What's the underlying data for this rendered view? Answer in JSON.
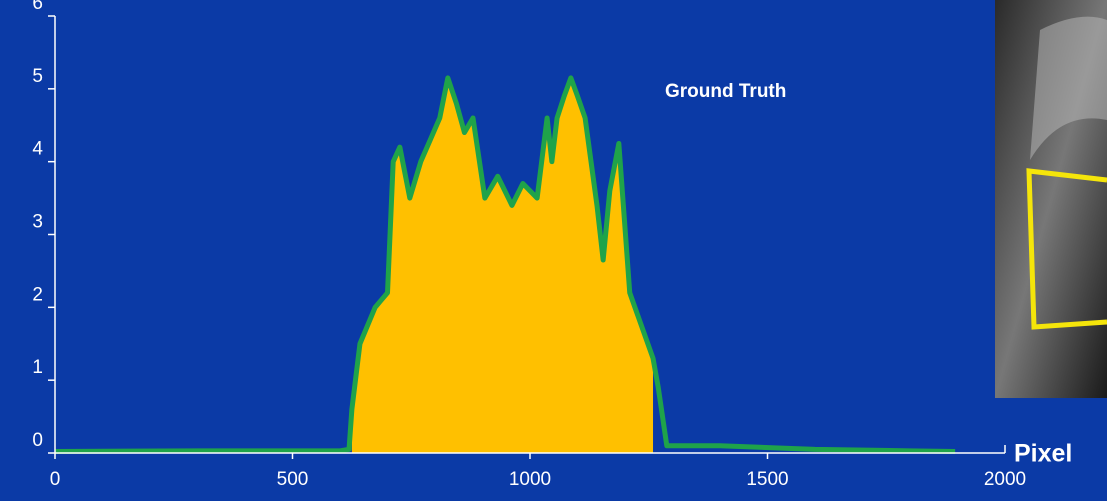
{
  "chart_data": {
    "type": "line",
    "annotation": "Ground Truth",
    "x_label": "Pixel",
    "x": [
      0,
      300,
      600,
      619,
      625,
      642,
      674,
      700,
      712,
      726,
      747,
      770,
      790,
      810,
      827,
      845,
      862,
      880,
      905,
      932,
      962,
      985,
      1015,
      1036,
      1046,
      1057,
      1072,
      1086,
      1100,
      1116,
      1141,
      1154,
      1168,
      1187,
      1210,
      1259,
      1270,
      1288,
      1400,
      1600,
      1800,
      1895
    ],
    "series": [
      {
        "type": "area",
        "color": "#ffc000",
        "values": [
          null,
          null,
          null,
          null,
          0.6,
          1.5,
          2.0,
          2.2,
          4.0,
          4.2,
          3.5,
          4.0,
          4.3,
          4.6,
          5.15,
          4.8,
          4.4,
          4.6,
          3.5,
          3.8,
          3.4,
          3.7,
          3.5,
          4.6,
          4.0,
          4.6,
          4.9,
          5.15,
          4.9,
          4.6,
          3.4,
          2.65,
          3.6,
          4.25,
          2.2,
          1.3,
          null,
          null,
          null,
          null,
          null,
          null
        ]
      },
      {
        "type": "line",
        "color": "#1fa34a",
        "values": [
          0.02,
          0.03,
          0.03,
          0.05,
          0.6,
          1.5,
          2.0,
          2.2,
          4.0,
          4.2,
          3.5,
          4.0,
          4.3,
          4.6,
          5.15,
          4.8,
          4.4,
          4.6,
          3.5,
          3.8,
          3.4,
          3.7,
          3.5,
          4.6,
          4.0,
          4.6,
          4.9,
          5.15,
          4.9,
          4.6,
          3.4,
          2.65,
          3.6,
          4.25,
          2.2,
          1.3,
          0.9,
          0.1,
          0.1,
          0.05,
          0.03,
          0.02
        ]
      }
    ],
    "xlim": [
      0,
      2000
    ],
    "xticks": [
      0,
      500,
      1000,
      1500,
      2000
    ],
    "ylim": [
      0,
      6
    ],
    "yticks": [
      0,
      1,
      2,
      3,
      4,
      5,
      6
    ],
    "axis_color": "#ffffff"
  }
}
